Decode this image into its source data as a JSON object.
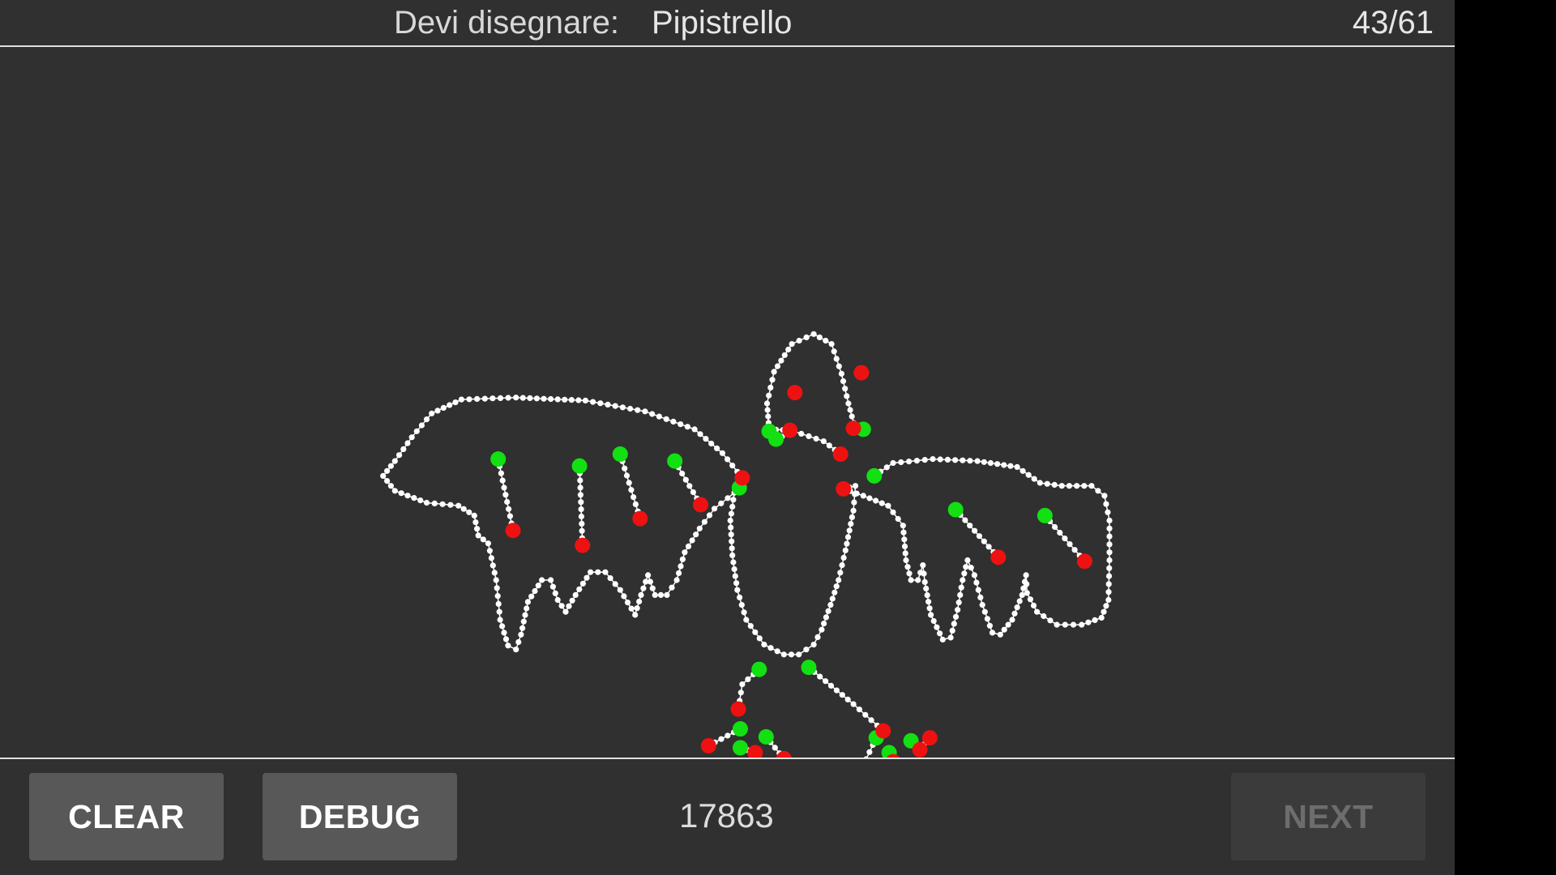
{
  "header": {
    "prompt_label": "Devi disegnare:",
    "prompt_word": "Pipistrello",
    "progress": "43/61"
  },
  "footer": {
    "clear_label": "CLEAR",
    "debug_label": "DEBUG",
    "score": "17863",
    "next_label": "NEXT"
  },
  "colors": {
    "background": "#303030",
    "stroke": "#ffffff",
    "stroke_start": "#12e012",
    "stroke_end": "#ee1111",
    "button": "#585858",
    "button_disabled": "#3b3b3b"
  }
}
